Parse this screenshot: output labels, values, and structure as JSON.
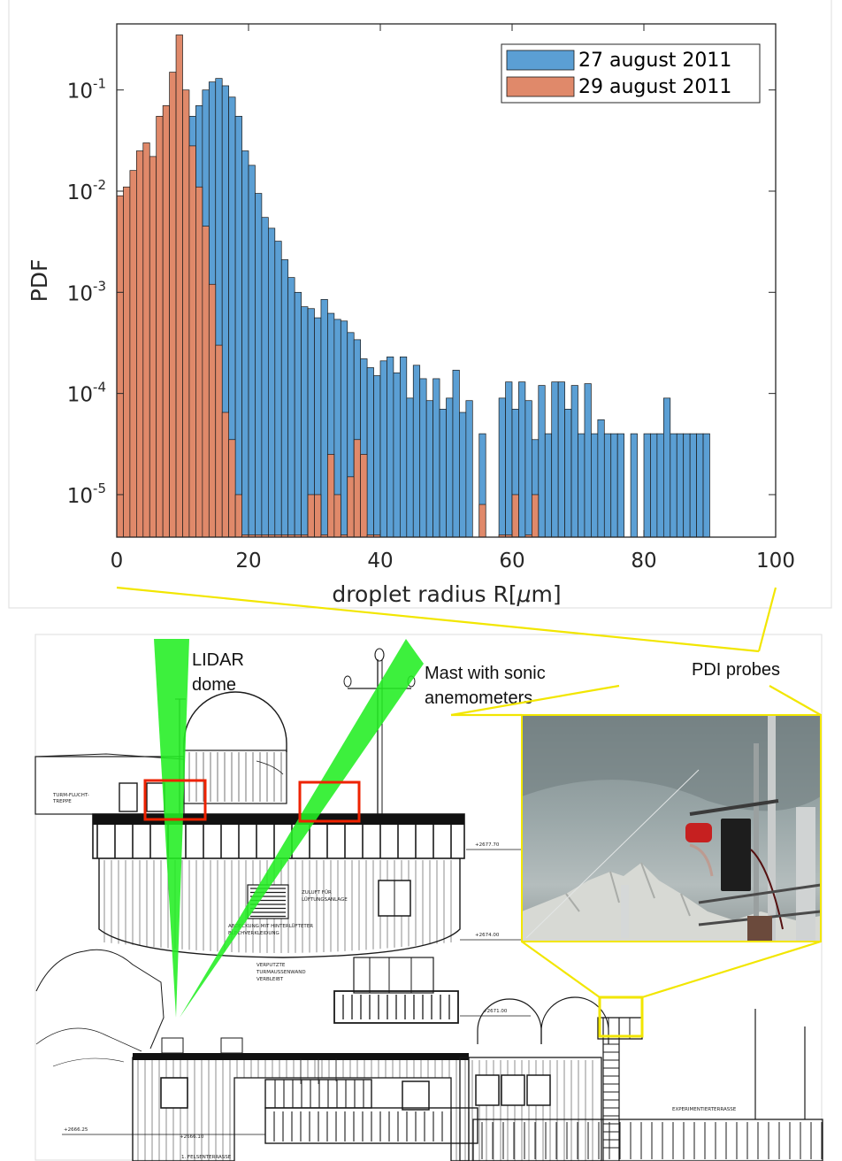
{
  "chart_data": {
    "type": "bar",
    "yscale": "log",
    "xlabel_main": "droplet radius R[",
    "xlabel_mu": "μ",
    "xlabel_unit": "m]",
    "ylabel": "PDF",
    "xlim": [
      0,
      100
    ],
    "ylim": [
      3.8e-06,
      0.45
    ],
    "x_ticks": [
      "0",
      "20",
      "40",
      "60",
      "80",
      "100"
    ],
    "y_ticks": [
      {
        "base": "10",
        "exp": "-1",
        "value": 0.1
      },
      {
        "base": "10",
        "exp": "-2",
        "value": 0.01
      },
      {
        "base": "10",
        "exp": "-3",
        "value": 0.001
      },
      {
        "base": "10",
        "exp": "-4",
        "value": 0.0001
      },
      {
        "base": "10",
        "exp": "-5",
        "value": 1e-05
      }
    ],
    "legend_position": "top-right",
    "bin_width": 1,
    "series": [
      {
        "name": "27 august 2011",
        "color": "#5b9fd4",
        "values": [
          0.00025,
          6.5e-05,
          0.000115,
          0.00028,
          0.00095,
          0.0045,
          0.012,
          0.03,
          0.06,
          0.08,
          0.05,
          0.055,
          0.07,
          0.1,
          0.12,
          0.13,
          0.11,
          0.085,
          0.055,
          0.025,
          0.018,
          0.0095,
          0.0055,
          0.0043,
          0.0032,
          0.0021,
          0.0014,
          0.001,
          0.00072,
          0.00069,
          0.00056,
          0.00085,
          0.00062,
          0.00054,
          0.00052,
          0.0004,
          0.00034,
          0.00022,
          0.00018,
          0.00015,
          0.00021,
          0.00023,
          0.00016,
          0.00023,
          9e-05,
          0.00019,
          0.00014,
          8.5e-05,
          0.00014,
          7e-05,
          9e-05,
          0.00017,
          6.5e-05,
          8.5e-05,
          0,
          4e-05,
          0,
          0,
          9e-05,
          0.00013,
          7e-05,
          0.00013,
          8.5e-05,
          3.5e-05,
          0.00012,
          4e-05,
          0.00013,
          0.00013,
          7e-05,
          0.00012,
          4e-05,
          0.000125,
          4e-05,
          5.5e-05,
          4e-05,
          4e-05,
          4e-05,
          0,
          4e-05,
          0,
          4e-05,
          4e-05,
          4e-05,
          9e-05,
          4e-05,
          4e-05,
          4e-05,
          4e-05,
          4e-05,
          4e-05
        ]
      },
      {
        "name": "29 august 2011",
        "color": "#e0896a",
        "values": [
          0.009,
          0.011,
          0.016,
          0.025,
          0.03,
          0.022,
          0.055,
          0.07,
          0.15,
          0.35,
          0.1,
          0.028,
          0.011,
          0.0045,
          0.0012,
          0.0003,
          6.5e-05,
          3.5e-05,
          1e-05,
          4e-06,
          4e-06,
          4e-06,
          4e-06,
          4e-06,
          4e-06,
          4e-06,
          4e-06,
          4e-06,
          4e-06,
          1e-05,
          1e-05,
          4e-06,
          2.5e-05,
          1e-05,
          4e-06,
          1.5e-05,
          3.5e-05,
          2.5e-05,
          4e-06,
          4e-06,
          0,
          0,
          0,
          0,
          0,
          0,
          0,
          0,
          0,
          0,
          0,
          0,
          0,
          0,
          0,
          8e-06,
          0,
          0,
          4e-06,
          4e-06,
          1e-05,
          0,
          4e-06,
          1e-05,
          0,
          0,
          0,
          0,
          0,
          0,
          0,
          0,
          0,
          0,
          0,
          0,
          0,
          0,
          0,
          0,
          0,
          0,
          0,
          0,
          0,
          0,
          0,
          0,
          0,
          0
        ]
      }
    ]
  },
  "lower_figure": {
    "labels": {
      "lidar_line1": "LIDAR",
      "lidar_line2": "dome",
      "mast_line1": "Mast with sonic",
      "mast_line2": "anemometers",
      "pdi": "PDI probes"
    },
    "plan_text": {
      "stair_1": "TURM-FLUCHT-",
      "stair_2": "TREPPE",
      "vent_1": "ZULUFT FÜR",
      "vent_2": "LÜFTUNGSANLAGE",
      "facade_1": "ABDECKUNG MIT HINTERLÜFTETER",
      "facade_2": "BLECHVERKLEIDUNG",
      "wall_1": "VERPUTZTE",
      "wall_2": "TURMAUSSENWAND",
      "wall_3": "VERBLEIBT",
      "level_1": "+2677.70",
      "level_2": "+2674.00",
      "level_3": "+2671.00",
      "level_4": "+2666.25",
      "level_5": "+2666.10",
      "terrace": "EXPERIMENTIERTERRASSE",
      "bottom": "1. FELSENTERRASSE"
    },
    "colors": {
      "beam": "#22ee22",
      "box_red": "#ee2200",
      "callout_yellow": "#f2e600"
    }
  }
}
